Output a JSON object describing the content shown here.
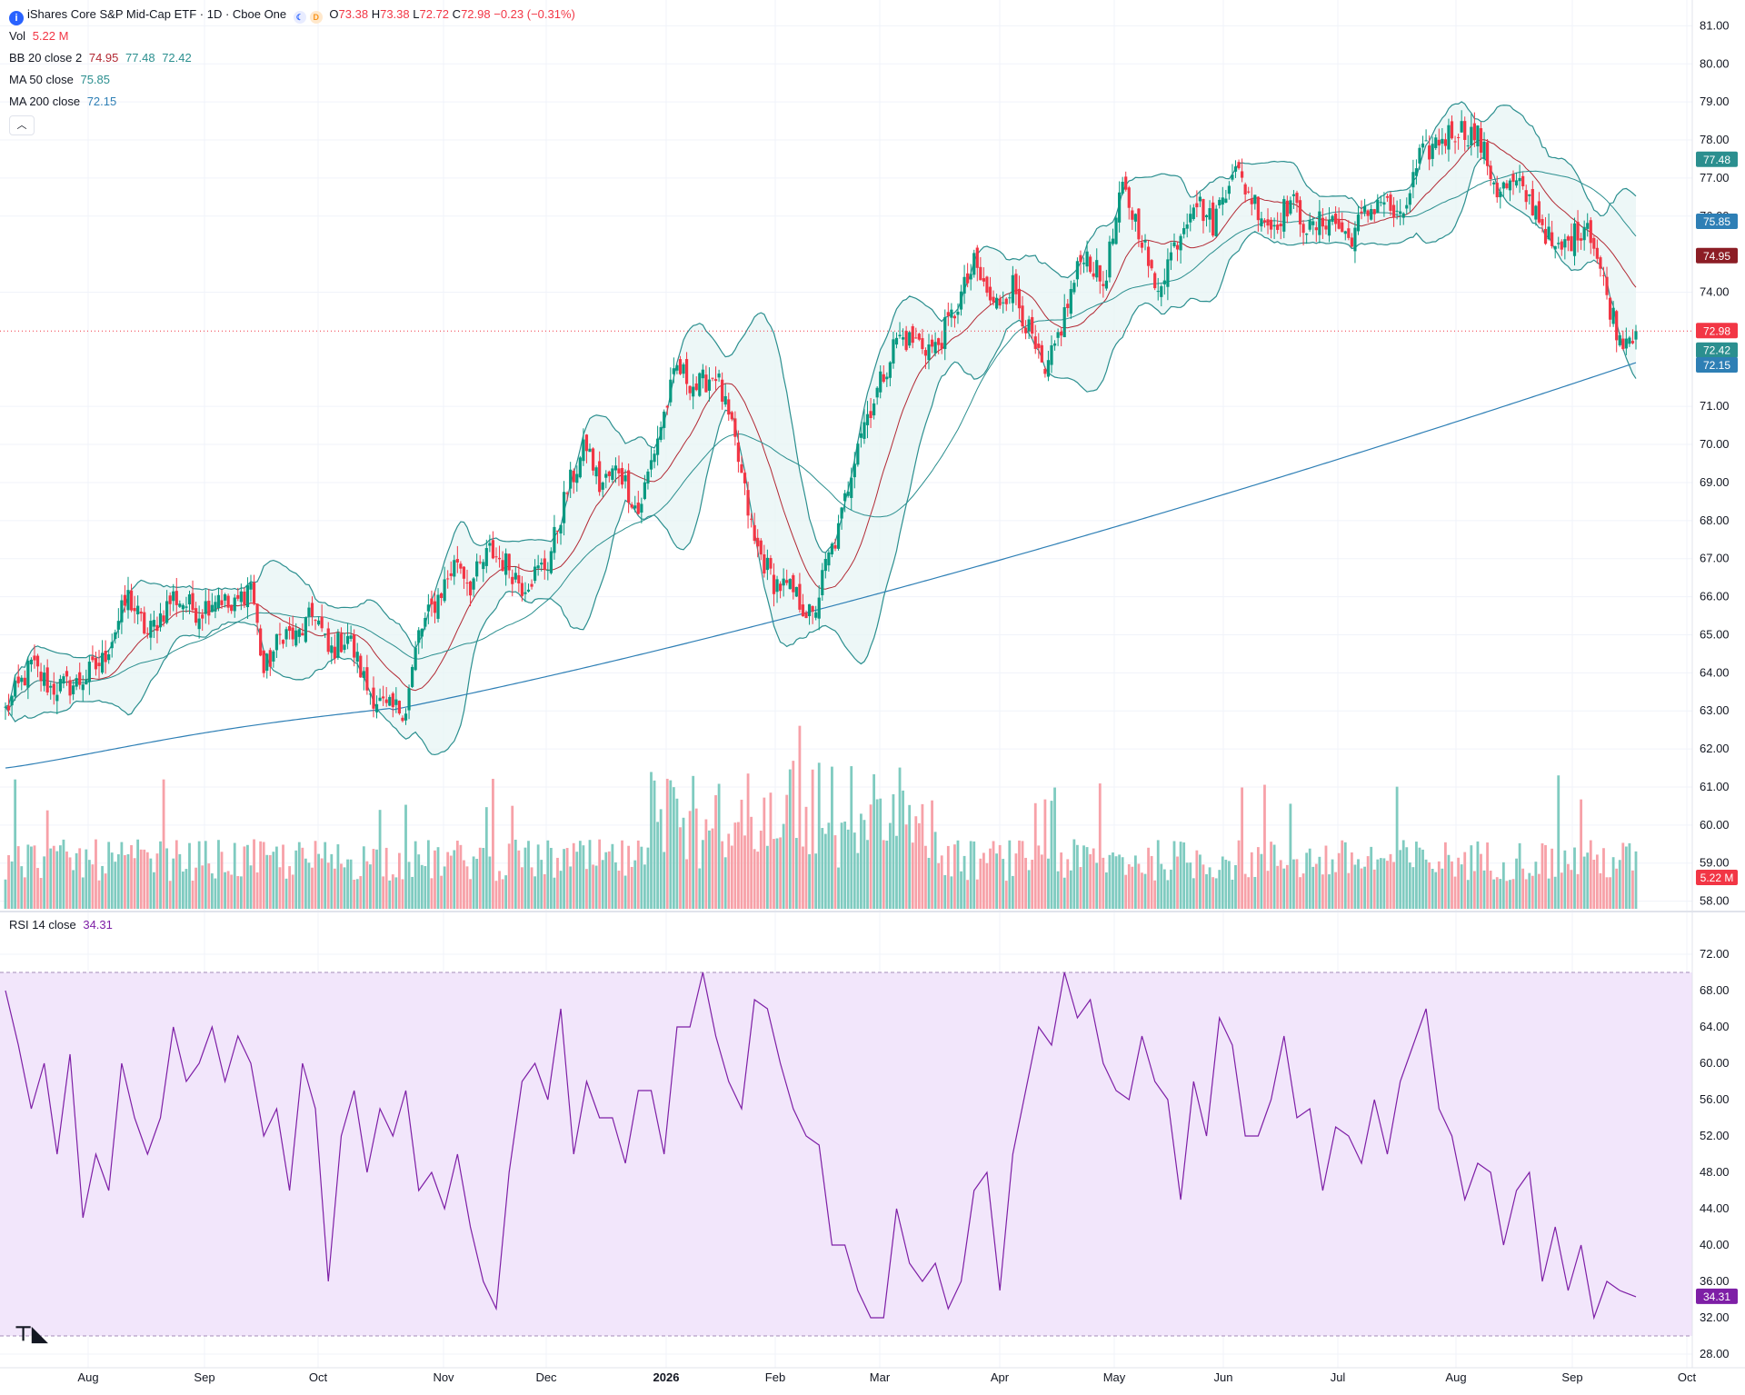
{
  "header": {
    "title": "iShares Core S&P Mid-Cap ETF · 1D · Cboe One",
    "ticker_icon": "i",
    "flags": [
      "moon-icon",
      "D"
    ],
    "ohlc": {
      "o_label": "O",
      "o": "73.38",
      "h_label": "H",
      "h": "73.38",
      "l_label": "L",
      "l": "72.72",
      "c_label": "C",
      "c": "72.98",
      "change": "−0.23 (−0.31%)"
    }
  },
  "indicators": {
    "vol": {
      "label": "Vol",
      "value": "5.22 M"
    },
    "bb": {
      "label": "BB",
      "params": "20 close 2",
      "basis": "74.95",
      "upper": "77.48",
      "lower": "72.42"
    },
    "ma50": {
      "label": "MA",
      "params": "50 close",
      "value": "75.85"
    },
    "ma200": {
      "label": "MA",
      "params": "200 close",
      "value": "72.15"
    },
    "rsi": {
      "label": "RSI",
      "params": "14 close",
      "value": "34.31"
    }
  },
  "collapse_icon": "chevron-up-icon",
  "logo": "tradingview-logo",
  "colors": {
    "up": "#089981",
    "down": "#f23645",
    "up_vol": "#7fcbc0",
    "down_vol": "#f7a1a8",
    "bb": "#2b8f8f",
    "bb_basis": "#b22833",
    "bb_fill": "#e6f4f4",
    "ma50": "#2b8f8f",
    "ma200": "#2e7fb5",
    "rsi": "#7e1fa6",
    "rsi_fill": "#f2e6fb",
    "price_line": "#f23645"
  },
  "chart_data": {
    "type": "candlestick",
    "price_axis": {
      "ticks": [
        "81.00",
        "80.00",
        "79.00",
        "78.00",
        "77.00",
        "76.00",
        "74.00",
        "71.00",
        "70.00",
        "69.00",
        "68.00",
        "67.00",
        "66.00",
        "65.00",
        "64.00",
        "63.00",
        "62.00",
        "61.00",
        "60.00",
        "59.00",
        "58.00"
      ],
      "ylim": [
        57.8,
        81.2
      ]
    },
    "badges": [
      {
        "value": "77.48",
        "series": "bb_upper"
      },
      {
        "value": "75.85",
        "series": "ma50"
      },
      {
        "value": "74.95",
        "series": "bb_basis"
      },
      {
        "value": "72.98",
        "series": "last_price"
      },
      {
        "value": "72.42",
        "series": "bb_lower"
      },
      {
        "value": "72.15",
        "series": "ma200"
      },
      {
        "value": "5.22 M",
        "series": "volume"
      },
      {
        "value": "34.31",
        "series": "rsi"
      }
    ],
    "time_axis": {
      "labels": [
        "Aug",
        "Sep",
        "Oct",
        "Nov",
        "Dec",
        "2026",
        "Feb",
        "Mar",
        "Apr",
        "May",
        "Jun",
        "Jul",
        "Aug",
        "Sep",
        "Oct"
      ]
    },
    "rsi_axis": {
      "ticks": [
        "72.00",
        "68.00",
        "64.00",
        "60.00",
        "56.00",
        "52.00",
        "48.00",
        "44.00",
        "40.00",
        "36.00",
        "32.00",
        "28.00"
      ],
      "band": [
        30,
        70
      ],
      "ylim": [
        26.5,
        74
      ]
    },
    "close_keypoints": [
      [
        0,
        63.0
      ],
      [
        8,
        64.2
      ],
      [
        14,
        63.6
      ],
      [
        22,
        63.7
      ],
      [
        30,
        64.3
      ],
      [
        38,
        66.0
      ],
      [
        44,
        65.0
      ],
      [
        52,
        66.0
      ],
      [
        60,
        65.6
      ],
      [
        66,
        66.1
      ],
      [
        70,
        65.6
      ],
      [
        76,
        66.4
      ],
      [
        80,
        64.0
      ],
      [
        86,
        65.1
      ],
      [
        90,
        64.9
      ],
      [
        96,
        65.6
      ],
      [
        100,
        64.5
      ],
      [
        106,
        65.0
      ],
      [
        112,
        63.6
      ],
      [
        118,
        63.0
      ],
      [
        124,
        63.1
      ],
      [
        128,
        65.0
      ],
      [
        134,
        66.0
      ],
      [
        140,
        67.0
      ],
      [
        144,
        66.3
      ],
      [
        150,
        67.2
      ],
      [
        156,
        66.8
      ],
      [
        160,
        66.3
      ],
      [
        168,
        66.9
      ],
      [
        174,
        68.8
      ],
      [
        180,
        70.0
      ],
      [
        184,
        68.9
      ],
      [
        190,
        69.4
      ],
      [
        196,
        68.2
      ],
      [
        202,
        70.2
      ],
      [
        208,
        72.0
      ],
      [
        214,
        71.5
      ],
      [
        220,
        71.9
      ],
      [
        226,
        70.0
      ],
      [
        232,
        67.4
      ],
      [
        238,
        66.4
      ],
      [
        244,
        66.1
      ],
      [
        250,
        65.4
      ],
      [
        254,
        66.8
      ],
      [
        258,
        67.7
      ],
      [
        264,
        70.2
      ],
      [
        270,
        71.4
      ],
      [
        276,
        72.8
      ],
      [
        282,
        72.7
      ],
      [
        288,
        72.5
      ],
      [
        294,
        73.5
      ],
      [
        300,
        74.7
      ],
      [
        306,
        73.6
      ],
      [
        312,
        74.2
      ],
      [
        316,
        73.2
      ],
      [
        322,
        71.7
      ],
      [
        328,
        73.4
      ],
      [
        334,
        75.1
      ],
      [
        340,
        74.2
      ],
      [
        346,
        76.7
      ],
      [
        352,
        75.5
      ],
      [
        356,
        74.0
      ],
      [
        362,
        75.2
      ],
      [
        368,
        76.5
      ],
      [
        374,
        75.8
      ],
      [
        380,
        77.3
      ],
      [
        386,
        76.5
      ],
      [
        392,
        75.7
      ],
      [
        398,
        76.4
      ],
      [
        404,
        75.6
      ],
      [
        410,
        76.0
      ],
      [
        416,
        75.4
      ],
      [
        420,
        75.9
      ],
      [
        426,
        76.5
      ],
      [
        432,
        75.8
      ],
      [
        438,
        77.5
      ],
      [
        444,
        78.0
      ],
      [
        450,
        78.3
      ],
      [
        456,
        78.1
      ],
      [
        462,
        76.7
      ],
      [
        468,
        76.8
      ],
      [
        474,
        76.2
      ],
      [
        480,
        75.0
      ],
      [
        484,
        75.3
      ],
      [
        490,
        75.9
      ],
      [
        496,
        73.9
      ],
      [
        500,
        72.8
      ],
      [
        505,
        73.0
      ]
    ],
    "last_close": 72.98,
    "rsi_keypoints": [
      [
        0,
        68
      ],
      [
        4,
        62
      ],
      [
        8,
        55
      ],
      [
        12,
        60
      ],
      [
        16,
        50
      ],
      [
        20,
        61
      ],
      [
        24,
        43
      ],
      [
        28,
        50
      ],
      [
        32,
        46
      ],
      [
        36,
        60
      ],
      [
        40,
        54
      ],
      [
        44,
        50
      ],
      [
        48,
        54
      ],
      [
        52,
        64
      ],
      [
        56,
        58
      ],
      [
        60,
        60
      ],
      [
        64,
        64
      ],
      [
        68,
        58
      ],
      [
        72,
        63
      ],
      [
        76,
        60
      ],
      [
        80,
        52
      ],
      [
        84,
        55
      ],
      [
        88,
        46
      ],
      [
        92,
        60
      ],
      [
        96,
        55
      ],
      [
        100,
        36
      ],
      [
        104,
        52
      ],
      [
        108,
        57
      ],
      [
        112,
        48
      ],
      [
        116,
        55
      ],
      [
        120,
        52
      ],
      [
        124,
        57
      ],
      [
        128,
        46
      ],
      [
        132,
        48
      ],
      [
        136,
        44
      ],
      [
        140,
        50
      ],
      [
        144,
        42
      ],
      [
        148,
        36
      ],
      [
        152,
        33
      ],
      [
        156,
        48
      ],
      [
        160,
        58
      ],
      [
        164,
        60
      ],
      [
        168,
        56
      ],
      [
        172,
        66
      ],
      [
        176,
        50
      ],
      [
        180,
        58
      ],
      [
        184,
        54
      ],
      [
        188,
        54
      ],
      [
        192,
        49
      ],
      [
        196,
        57
      ],
      [
        200,
        57
      ],
      [
        204,
        50
      ],
      [
        208,
        64
      ],
      [
        212,
        64
      ],
      [
        216,
        70
      ],
      [
        220,
        63
      ],
      [
        224,
        58
      ],
      [
        228,
        55
      ],
      [
        232,
        67
      ],
      [
        236,
        66
      ],
      [
        240,
        60
      ],
      [
        244,
        55
      ],
      [
        248,
        52
      ],
      [
        252,
        51
      ],
      [
        256,
        40
      ],
      [
        260,
        40
      ],
      [
        264,
        35
      ],
      [
        268,
        32
      ],
      [
        272,
        32
      ],
      [
        276,
        44
      ],
      [
        280,
        38
      ],
      [
        284,
        36
      ],
      [
        288,
        38
      ],
      [
        292,
        33
      ],
      [
        296,
        36
      ],
      [
        300,
        46
      ],
      [
        304,
        48
      ],
      [
        308,
        35
      ],
      [
        312,
        50
      ],
      [
        316,
        57
      ],
      [
        320,
        64
      ],
      [
        324,
        62
      ],
      [
        328,
        70
      ],
      [
        332,
        65
      ],
      [
        336,
        67
      ],
      [
        340,
        60
      ],
      [
        344,
        57
      ],
      [
        348,
        56
      ],
      [
        352,
        63
      ],
      [
        356,
        58
      ],
      [
        360,
        56
      ],
      [
        364,
        45
      ],
      [
        368,
        58
      ],
      [
        372,
        52
      ],
      [
        376,
        65
      ],
      [
        380,
        62
      ],
      [
        384,
        52
      ],
      [
        388,
        52
      ],
      [
        392,
        56
      ],
      [
        396,
        63
      ],
      [
        400,
        54
      ],
      [
        404,
        55
      ],
      [
        408,
        46
      ],
      [
        412,
        53
      ],
      [
        416,
        52
      ],
      [
        420,
        49
      ],
      [
        424,
        56
      ],
      [
        428,
        50
      ],
      [
        432,
        58
      ],
      [
        436,
        62
      ],
      [
        440,
        66
      ],
      [
        444,
        55
      ],
      [
        448,
        52
      ],
      [
        452,
        45
      ],
      [
        456,
        49
      ],
      [
        460,
        48
      ],
      [
        464,
        40
      ],
      [
        468,
        46
      ],
      [
        472,
        48
      ],
      [
        476,
        36
      ],
      [
        480,
        42
      ],
      [
        484,
        35
      ],
      [
        488,
        40
      ],
      [
        492,
        32
      ],
      [
        496,
        36
      ],
      [
        500,
        35
      ],
      [
        505,
        34.31
      ]
    ],
    "volume_axis": {
      "ylim_m": [
        0,
        34
      ]
    }
  }
}
